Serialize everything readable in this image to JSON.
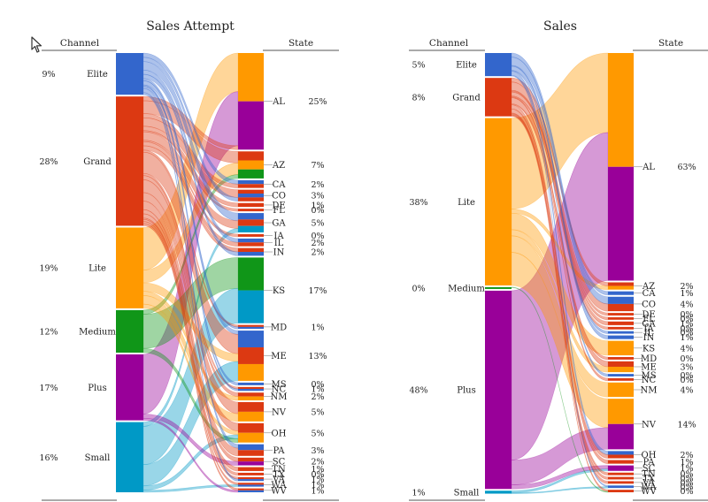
{
  "chart_data": [
    {
      "type": "sankey",
      "title": "Sales Attempt",
      "left_header": "Channel",
      "right_header": "State",
      "channels": [
        {
          "name": "Elite",
          "pct": "9%",
          "color": "#3366cc"
        },
        {
          "name": "Grand",
          "pct": "28%",
          "color": "#dc3912"
        },
        {
          "name": "Lite",
          "pct": "19%",
          "color": "#ff9900"
        },
        {
          "name": "Medium",
          "pct": "12%",
          "color": "#109618"
        },
        {
          "name": "Plus",
          "pct": "17%",
          "color": "#990099"
        },
        {
          "name": "Small",
          "pct": "16%",
          "color": "#0099c6"
        }
      ],
      "states": [
        {
          "name": "AL",
          "pct": "25%",
          "colors": [
            "#ff9900",
            "#990099"
          ]
        },
        {
          "name": "AZ",
          "pct": "7%",
          "colors": [
            "#dc3912",
            "#ff9900",
            "#109618"
          ]
        },
        {
          "name": "CA",
          "pct": "2%",
          "colors": [
            "#3366cc",
            "#dc3912"
          ]
        },
        {
          "name": "CO",
          "pct": "3%",
          "colors": [
            "#dc3912",
            "#3366cc",
            "#dc3912"
          ]
        },
        {
          "name": "DE",
          "pct": "1%",
          "colors": [
            "#dc3912"
          ]
        },
        {
          "name": "FL",
          "pct": "0%",
          "colors": [
            "#dc3912"
          ]
        },
        {
          "name": "GA",
          "pct": "5%",
          "colors": [
            "#3366cc",
            "#dc3912",
            "#0099c6"
          ]
        },
        {
          "name": "IA",
          "pct": "0%",
          "colors": [
            "#dc3912"
          ]
        },
        {
          "name": "IL",
          "pct": "2%",
          "colors": [
            "#3366cc",
            "#dc3912"
          ]
        },
        {
          "name": "IN",
          "pct": "2%",
          "colors": [
            "#dc3912",
            "#3366cc"
          ]
        },
        {
          "name": "KS",
          "pct": "17%",
          "colors": [
            "#109618",
            "#0099c6"
          ]
        },
        {
          "name": "MD",
          "pct": "1%",
          "colors": [
            "#dc3912",
            "#3366cc"
          ]
        },
        {
          "name": "ME",
          "pct": "13%",
          "colors": [
            "#3366cc",
            "#dc3912",
            "#ff9900"
          ]
        },
        {
          "name": "MS",
          "pct": "0%",
          "colors": [
            "#3366cc"
          ]
        },
        {
          "name": "NC",
          "pct": "1%",
          "colors": [
            "#dc3912",
            "#3366cc"
          ]
        },
        {
          "name": "NM",
          "pct": "2%",
          "colors": [
            "#dc3912",
            "#ff9900"
          ]
        },
        {
          "name": "NV",
          "pct": "5%",
          "colors": [
            "#dc3912",
            "#ff9900"
          ]
        },
        {
          "name": "OH",
          "pct": "5%",
          "colors": [
            "#dc3912",
            "#ff9900"
          ]
        },
        {
          "name": "PA",
          "pct": "3%",
          "colors": [
            "#3366cc",
            "#dc3912"
          ]
        },
        {
          "name": "SC",
          "pct": "2%",
          "colors": [
            "#dc3912",
            "#990099"
          ]
        },
        {
          "name": "TN",
          "pct": "1%",
          "colors": [
            "#dc3912"
          ]
        },
        {
          "name": "TX",
          "pct": "0%",
          "colors": [
            "#dc3912"
          ]
        },
        {
          "name": "VA",
          "pct": "1%",
          "colors": [
            "#dc3912",
            "#3366cc"
          ]
        },
        {
          "name": "WA",
          "pct": "1%",
          "colors": [
            "#dc3912",
            "#3366cc"
          ]
        },
        {
          "name": "WV",
          "pct": "1%",
          "colors": [
            "#dc3912",
            "#3366cc"
          ]
        }
      ],
      "flows": [
        {
          "from": "Lite",
          "to": "AL",
          "value": 10
        },
        {
          "from": "Plus",
          "to": "AL",
          "value": 14
        },
        {
          "from": "Grand",
          "to": "AL",
          "value": 1
        },
        {
          "from": "Grand",
          "to": "AZ",
          "value": 3
        },
        {
          "from": "Lite",
          "to": "AZ",
          "value": 3
        },
        {
          "from": "Medium",
          "to": "AZ",
          "value": 1
        },
        {
          "from": "Elite",
          "to": "CA",
          "value": 1
        },
        {
          "from": "Grand",
          "to": "CA",
          "value": 1
        },
        {
          "from": "Grand",
          "to": "CO",
          "value": 2
        },
        {
          "from": "Elite",
          "to": "CO",
          "value": 1
        },
        {
          "from": "Grand",
          "to": "DE",
          "value": 1
        },
        {
          "from": "Grand",
          "to": "FL",
          "value": 0.3
        },
        {
          "from": "Elite",
          "to": "GA",
          "value": 2
        },
        {
          "from": "Grand",
          "to": "GA",
          "value": 2
        },
        {
          "from": "Small",
          "to": "GA",
          "value": 1
        },
        {
          "from": "Grand",
          "to": "IA",
          "value": 0.3
        },
        {
          "from": "Elite",
          "to": "IL",
          "value": 1
        },
        {
          "from": "Grand",
          "to": "IL",
          "value": 1
        },
        {
          "from": "Grand",
          "to": "IN",
          "value": 1
        },
        {
          "from": "Elite",
          "to": "IN",
          "value": 1
        },
        {
          "from": "Medium",
          "to": "KS",
          "value": 8
        },
        {
          "from": "Small",
          "to": "KS",
          "value": 9
        },
        {
          "from": "Grand",
          "to": "MD",
          "value": 0.5
        },
        {
          "from": "Elite",
          "to": "MD",
          "value": 0.5
        },
        {
          "from": "Elite",
          "to": "ME",
          "value": 1
        },
        {
          "from": "Grand",
          "to": "ME",
          "value": 5
        },
        {
          "from": "Lite",
          "to": "ME",
          "value": 2
        },
        {
          "from": "Small",
          "to": "ME",
          "value": 5
        },
        {
          "from": "Elite",
          "to": "MS",
          "value": 0.3
        },
        {
          "from": "Grand",
          "to": "NC",
          "value": 0.5
        },
        {
          "from": "Elite",
          "to": "NC",
          "value": 0.5
        },
        {
          "from": "Grand",
          "to": "NM",
          "value": 1
        },
        {
          "from": "Lite",
          "to": "NM",
          "value": 1
        },
        {
          "from": "Grand",
          "to": "NV",
          "value": 3
        },
        {
          "from": "Lite",
          "to": "NV",
          "value": 2
        },
        {
          "from": "Grand",
          "to": "OH",
          "value": 2
        },
        {
          "from": "Lite",
          "to": "OH",
          "value": 1
        },
        {
          "from": "Small",
          "to": "OH",
          "value": 1
        },
        {
          "from": "Medium",
          "to": "OH",
          "value": 1
        },
        {
          "from": "Elite",
          "to": "PA",
          "value": 1
        },
        {
          "from": "Grand",
          "to": "PA",
          "value": 2
        },
        {
          "from": "Grand",
          "to": "SC",
          "value": 1
        },
        {
          "from": "Plus",
          "to": "SC",
          "value": 1
        },
        {
          "from": "Grand",
          "to": "TN",
          "value": 1
        },
        {
          "from": "Grand",
          "to": "TX",
          "value": 0.3
        },
        {
          "from": "Grand",
          "to": "VA",
          "value": 0.5
        },
        {
          "from": "Elite",
          "to": "VA",
          "value": 0.5
        },
        {
          "from": "Grand",
          "to": "WA",
          "value": 0.5
        },
        {
          "from": "Small",
          "to": "WA",
          "value": 0.5
        },
        {
          "from": "Grand",
          "to": "WV",
          "value": 0.5
        },
        {
          "from": "Plus",
          "to": "WV",
          "value": 0.5
        }
      ]
    },
    {
      "type": "sankey",
      "title": "Sales",
      "left_header": "Channel",
      "right_header": "State",
      "channels": [
        {
          "name": "Elite",
          "pct": "5%",
          "color": "#3366cc"
        },
        {
          "name": "Grand",
          "pct": "8%",
          "color": "#dc3912"
        },
        {
          "name": "Lite",
          "pct": "38%",
          "color": "#ff9900"
        },
        {
          "name": "Medium",
          "pct": "0%",
          "color": "#109618"
        },
        {
          "name": "Plus",
          "pct": "48%",
          "color": "#990099"
        },
        {
          "name": "Small",
          "pct": "1%",
          "color": "#0099c6"
        }
      ],
      "states": [
        {
          "name": "AL",
          "pct": "63%",
          "colors": [
            "#ff9900",
            "#990099"
          ]
        },
        {
          "name": "AZ",
          "pct": "2%",
          "colors": [
            "#dc3912",
            "#ff9900"
          ]
        },
        {
          "name": "CA",
          "pct": "1%",
          "colors": [
            "#3366cc"
          ]
        },
        {
          "name": "CO",
          "pct": "4%",
          "colors": [
            "#3366cc",
            "#dc3912"
          ]
        },
        {
          "name": "DE",
          "pct": "0%",
          "colors": [
            "#dc3912"
          ]
        },
        {
          "name": "FL",
          "pct": "0%",
          "colors": [
            "#dc3912"
          ]
        },
        {
          "name": "GA",
          "pct": "1%",
          "colors": [
            "#dc3912"
          ]
        },
        {
          "name": "IA",
          "pct": "0%",
          "colors": [
            "#dc3912"
          ]
        },
        {
          "name": "IL",
          "pct": "0%",
          "colors": [
            "#3366cc"
          ]
        },
        {
          "name": "IN",
          "pct": "1%",
          "colors": [
            "#3366cc"
          ]
        },
        {
          "name": "KS",
          "pct": "4%",
          "colors": [
            "#ff9900"
          ]
        },
        {
          "name": "MD",
          "pct": "0%",
          "colors": [
            "#dc3912"
          ]
        },
        {
          "name": "ME",
          "pct": "3%",
          "colors": [
            "#dc3912",
            "#ff9900"
          ]
        },
        {
          "name": "MS",
          "pct": "0%",
          "colors": [
            "#3366cc"
          ]
        },
        {
          "name": "NC",
          "pct": "0%",
          "colors": [
            "#dc3912"
          ]
        },
        {
          "name": "NM",
          "pct": "4%",
          "colors": [
            "#ff9900"
          ]
        },
        {
          "name": "NV",
          "pct": "14%",
          "colors": [
            "#ff9900",
            "#990099"
          ]
        },
        {
          "name": "OH",
          "pct": "2%",
          "colors": [
            "#3366cc",
            "#dc3912"
          ]
        },
        {
          "name": "PA",
          "pct": "1%",
          "colors": [
            "#dc3912"
          ]
        },
        {
          "name": "SC",
          "pct": "1%",
          "colors": [
            "#990099"
          ]
        },
        {
          "name": "TN",
          "pct": "0%",
          "colors": [
            "#dc3912"
          ]
        },
        {
          "name": "TX",
          "pct": "0%",
          "colors": [
            "#dc3912"
          ]
        },
        {
          "name": "VA",
          "pct": "0%",
          "colors": [
            "#dc3912"
          ]
        },
        {
          "name": "WA",
          "pct": "0%",
          "colors": [
            "#3366cc"
          ]
        },
        {
          "name": "WV",
          "pct": "0%",
          "colors": [
            "#dc3912"
          ]
        }
      ],
      "flows": [
        {
          "from": "Lite",
          "to": "AL",
          "value": 22
        },
        {
          "from": "Plus",
          "to": "AL",
          "value": 41
        },
        {
          "from": "Grand",
          "to": "AZ",
          "value": 1
        },
        {
          "from": "Lite",
          "to": "AZ",
          "value": 1
        },
        {
          "from": "Elite",
          "to": "CA",
          "value": 1
        },
        {
          "from": "Elite",
          "to": "CO",
          "value": 2
        },
        {
          "from": "Grand",
          "to": "CO",
          "value": 2
        },
        {
          "from": "Grand",
          "to": "DE",
          "value": 0.2
        },
        {
          "from": "Grand",
          "to": "FL",
          "value": 0.2
        },
        {
          "from": "Grand",
          "to": "GA",
          "value": 1
        },
        {
          "from": "Grand",
          "to": "IA",
          "value": 0.2
        },
        {
          "from": "Elite",
          "to": "IL",
          "value": 0.2
        },
        {
          "from": "Elite",
          "to": "IN",
          "value": 1
        },
        {
          "from": "Lite",
          "to": "KS",
          "value": 4
        },
        {
          "from": "Grand",
          "to": "MD",
          "value": 0.2
        },
        {
          "from": "Grand",
          "to": "ME",
          "value": 1.5
        },
        {
          "from": "Lite",
          "to": "ME",
          "value": 1.5
        },
        {
          "from": "Elite",
          "to": "MS",
          "value": 0.2
        },
        {
          "from": "Grand",
          "to": "NC",
          "value": 0.2
        },
        {
          "from": "Lite",
          "to": "NM",
          "value": 4
        },
        {
          "from": "Lite",
          "to": "NV",
          "value": 8
        },
        {
          "from": "Plus",
          "to": "NV",
          "value": 6
        },
        {
          "from": "Elite",
          "to": "OH",
          "value": 1
        },
        {
          "from": "Grand",
          "to": "OH",
          "value": 1
        },
        {
          "from": "Grand",
          "to": "PA",
          "value": 1
        },
        {
          "from": "Plus",
          "to": "SC",
          "value": 1
        },
        {
          "from": "Small",
          "to": "SC",
          "value": 0.5
        },
        {
          "from": "Grand",
          "to": "TN",
          "value": 0.2
        },
        {
          "from": "Grand",
          "to": "TX",
          "value": 0.2
        },
        {
          "from": "Grand",
          "to": "VA",
          "value": 0.2
        },
        {
          "from": "Elite",
          "to": "WA",
          "value": 0.2
        },
        {
          "from": "Small",
          "to": "WA",
          "value": 0.2
        },
        {
          "from": "Grand",
          "to": "WV",
          "value": 0.2
        },
        {
          "from": "Medium",
          "to": "WV",
          "value": 0.1
        }
      ]
    }
  ]
}
